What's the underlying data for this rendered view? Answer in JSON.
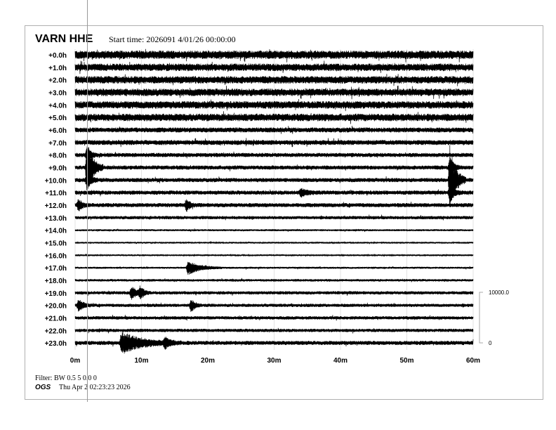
{
  "chart_data": {
    "type": "line",
    "title": "VARN HHE",
    "subtitle": "Start time: 2026091   4/01/26 00:00:00",
    "row_labels": [
      "+0.0h",
      "+1.0h",
      "+2.0h",
      "+3.0h",
      "+4.0h",
      "+5.0h",
      "+6.0h",
      "+7.0h",
      "+8.0h",
      "+9.0h",
      "+10.0h",
      "+11.0h",
      "+12.0h",
      "+13.0h",
      "+14.0h",
      "+15.0h",
      "+16.0h",
      "+17.0h",
      "+18.0h",
      "+19.0h",
      "+20.0h",
      "+21.0h",
      "+22.0h",
      "+23.0h"
    ],
    "x_ticks": [
      "0m",
      "10m",
      "20m",
      "30m",
      "40m",
      "50m",
      "60m"
    ],
    "xlim": [
      0,
      60
    ],
    "grid": true,
    "noise_level": [
      5,
      4.5,
      4.5,
      4.5,
      4.5,
      4.5,
      3,
      3,
      2.5,
      2.5,
      2.5,
      2.5,
      2.5,
      2,
      1.2,
      1,
      1,
      1.2,
      1.5,
      2,
      2,
      2,
      2,
      2.5
    ],
    "events": [
      {
        "row": 9,
        "minute": 1.8,
        "amplitude": 40,
        "duration": 1.2
      },
      {
        "row": 8,
        "minute": 1.8,
        "amplitude": 12,
        "duration": 0.8
      },
      {
        "row": 10,
        "minute": 1.8,
        "amplitude": 14,
        "duration": 0.8
      },
      {
        "row": 10,
        "minute": 56.5,
        "amplitude": 50,
        "duration": 1.2
      },
      {
        "row": 9,
        "minute": 56.5,
        "amplitude": 14,
        "duration": 0.8
      },
      {
        "row": 11,
        "minute": 56.5,
        "amplitude": 14,
        "duration": 0.8
      },
      {
        "row": 11,
        "minute": 34,
        "amplitude": 5,
        "duration": 1.5
      },
      {
        "row": 12,
        "minute": 0.5,
        "amplitude": 8,
        "duration": 0.8
      },
      {
        "row": 12,
        "minute": 16.8,
        "amplitude": 9,
        "duration": 0.6
      },
      {
        "row": 17,
        "minute": 17,
        "amplitude": 10,
        "duration": 2.5
      },
      {
        "row": 19,
        "minute": 8.5,
        "amplitude": 10,
        "duration": 1
      },
      {
        "row": 19,
        "minute": 9.8,
        "amplitude": 9,
        "duration": 0.8
      },
      {
        "row": 20,
        "minute": 0.5,
        "amplitude": 9,
        "duration": 1
      },
      {
        "row": 20,
        "minute": 17.5,
        "amplitude": 9,
        "duration": 0.8
      },
      {
        "row": 23,
        "minute": 7,
        "amplitude": 16,
        "duration": 4
      },
      {
        "row": 23,
        "minute": 13.5,
        "amplitude": 7,
        "duration": 1.2
      }
    ],
    "scale": {
      "top": "10000.0",
      "bottom": "0"
    }
  },
  "footer": {
    "filter": "Filter: BW 0.5 5 0.0 0",
    "org": "OGS",
    "timestamp": "Thu Apr  2 02:23:23 2026"
  },
  "colors": {
    "trace": "#000000",
    "grid": "#d0d0d0",
    "frame": "#b0b0b0"
  }
}
